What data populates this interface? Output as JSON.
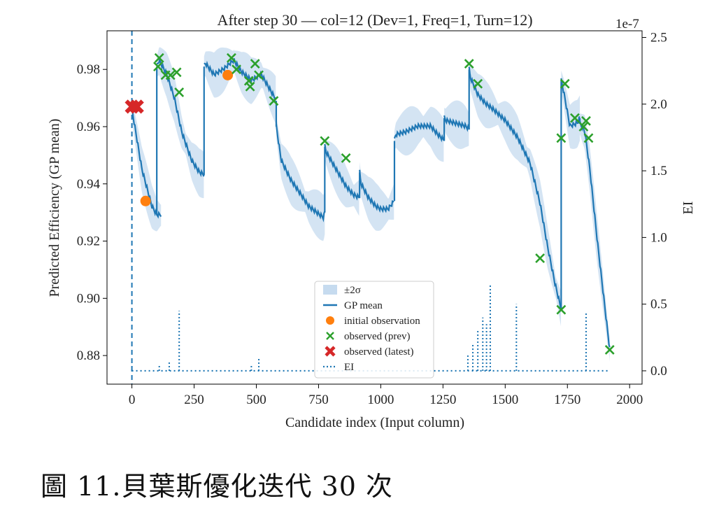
{
  "caption": "圖 11.貝葉斯優化迭代 30 次",
  "chart_data": {
    "type": "line",
    "title": "After step 30 — col=12 (Dev=1, Freq=1, Turn=12)",
    "xlabel": "Candidate index (Input column)",
    "ylabel": "Predicted Efficiency (GP mean)",
    "y2label": "EI",
    "y2_offset_label": "1e-7",
    "xlim": [
      -100,
      2050
    ],
    "ylim": [
      0.87,
      0.9935
    ],
    "y2lim": [
      -0.1,
      2.55
    ],
    "xticks": [
      0,
      250,
      500,
      750,
      1000,
      1250,
      1500,
      1750,
      2000
    ],
    "yticks": [
      "0.88",
      "0.90",
      "0.92",
      "0.94",
      "0.96",
      "0.98"
    ],
    "y2ticks": [
      "0.0",
      "0.5",
      "1.0",
      "1.5",
      "2.0",
      "2.5"
    ],
    "current_column_marker_x": 0,
    "colors": {
      "gp_mean": "#1f77b4",
      "band": "#c6dbef",
      "initial": "#ff7f0e",
      "prev": "#2ca02c",
      "latest": "#d62728",
      "ei": "#1f77b4"
    },
    "legend": {
      "position": "lower-center",
      "entries": [
        {
          "label": "±2σ",
          "kind": "band"
        },
        {
          "label": "GP mean",
          "kind": "line"
        },
        {
          "label": "initial observation",
          "kind": "orange-dot"
        },
        {
          "label": "observed (prev)",
          "kind": "green-x"
        },
        {
          "label": "observed (latest)",
          "kind": "red-x"
        },
        {
          "label": "EI",
          "kind": "dotted"
        }
      ]
    },
    "gp_mean_segments": [
      {
        "x": [
          0,
          40,
          80,
          100,
          118
        ],
        "y": [
          0.966,
          0.945,
          0.932,
          0.929,
          0.929
        ]
      },
      {
        "x": [
          100,
          110,
          140,
          170,
          200,
          240,
          270,
          290
        ],
        "y": [
          0.981,
          0.983,
          0.978,
          0.97,
          0.958,
          0.948,
          0.944,
          0.943
        ]
      },
      {
        "x": [
          290,
          295,
          330,
          370,
          395,
          410
        ],
        "y": [
          0.981,
          0.982,
          0.978,
          0.98,
          0.982,
          0.983
        ]
      },
      {
        "x": [
          410,
          440,
          480,
          520,
          560,
          580
        ],
        "y": [
          0.983,
          0.979,
          0.976,
          0.978,
          0.972,
          0.969
        ]
      },
      {
        "x": [
          580,
          600,
          640,
          680,
          710,
          740,
          770,
          775
        ],
        "y": [
          0.96,
          0.948,
          0.941,
          0.936,
          0.932,
          0.93,
          0.928,
          0.93
        ]
      },
      {
        "x": [
          775,
          780,
          820,
          860,
          890,
          915
        ],
        "y": [
          0.953,
          0.951,
          0.945,
          0.939,
          0.936,
          0.935
        ]
      },
      {
        "x": [
          915,
          920,
          950,
          980,
          1000,
          1030,
          1055
        ],
        "y": [
          0.944,
          0.94,
          0.935,
          0.932,
          0.931,
          0.931,
          0.934
        ]
      },
      {
        "x": [
          1055,
          1060,
          1100,
          1150,
          1200,
          1230,
          1255
        ],
        "y": [
          0.955,
          0.957,
          0.958,
          0.96,
          0.96,
          0.957,
          0.955
        ]
      },
      {
        "x": [
          1255,
          1260,
          1300,
          1340,
          1355
        ],
        "y": [
          0.963,
          0.962,
          0.961,
          0.96,
          0.959
        ]
      },
      {
        "x": [
          1355,
          1360,
          1390,
          1420,
          1450,
          1500,
          1550,
          1600,
          1640,
          1670,
          1700,
          1725
        ],
        "y": [
          0.98,
          0.977,
          0.971,
          0.968,
          0.966,
          0.962,
          0.956,
          0.947,
          0.933,
          0.918,
          0.905,
          0.896
        ]
      },
      {
        "x": [
          1725,
          1735,
          1760,
          1790,
          1800
        ],
        "y": [
          0.976,
          0.972,
          0.96,
          0.961,
          0.963
        ]
      },
      {
        "x": [
          1800,
          1820,
          1840,
          1870,
          1900,
          1920
        ],
        "y": [
          0.961,
          0.958,
          0.945,
          0.92,
          0.897,
          0.882
        ]
      }
    ],
    "band_halfwidth": 0.006,
    "ei_baseline": 0.0,
    "ei_spikes": [
      {
        "x": 0,
        "y": 0.05
      },
      {
        "x": 110,
        "y": 0.05
      },
      {
        "x": 150,
        "y": 0.07
      },
      {
        "x": 190,
        "y": 0.45
      },
      {
        "x": 480,
        "y": 0.05
      },
      {
        "x": 510,
        "y": 0.1
      },
      {
        "x": 1350,
        "y": 0.12
      },
      {
        "x": 1370,
        "y": 0.2
      },
      {
        "x": 1390,
        "y": 0.3
      },
      {
        "x": 1410,
        "y": 0.4
      },
      {
        "x": 1425,
        "y": 0.35
      },
      {
        "x": 1440,
        "y": 0.65
      },
      {
        "x": 1545,
        "y": 0.5
      },
      {
        "x": 1825,
        "y": 0.43
      }
    ],
    "initial_observations": [
      {
        "x": 55,
        "y": 0.934
      },
      {
        "x": 385,
        "y": 0.978
      }
    ],
    "observed_prev": [
      {
        "x": 105,
        "y": 0.981
      },
      {
        "x": 110,
        "y": 0.984
      },
      {
        "x": 135,
        "y": 0.978
      },
      {
        "x": 155,
        "y": 0.978
      },
      {
        "x": 180,
        "y": 0.979
      },
      {
        "x": 190,
        "y": 0.972
      },
      {
        "x": 400,
        "y": 0.984
      },
      {
        "x": 420,
        "y": 0.98
      },
      {
        "x": 470,
        "y": 0.976
      },
      {
        "x": 475,
        "y": 0.974
      },
      {
        "x": 495,
        "y": 0.982
      },
      {
        "x": 510,
        "y": 0.978
      },
      {
        "x": 570,
        "y": 0.969
      },
      {
        "x": 775,
        "y": 0.955
      },
      {
        "x": 860,
        "y": 0.949
      },
      {
        "x": 1355,
        "y": 0.982
      },
      {
        "x": 1390,
        "y": 0.975
      },
      {
        "x": 1640,
        "y": 0.914
      },
      {
        "x": 1725,
        "y": 0.896
      },
      {
        "x": 1725,
        "y": 0.956
      },
      {
        "x": 1740,
        "y": 0.975
      },
      {
        "x": 1780,
        "y": 0.963
      },
      {
        "x": 1815,
        "y": 0.96
      },
      {
        "x": 1825,
        "y": 0.962
      },
      {
        "x": 1835,
        "y": 0.956
      },
      {
        "x": 1920,
        "y": 0.882
      }
    ],
    "observed_latest": [
      {
        "x": 0,
        "y": 0.967
      },
      {
        "x": 20,
        "y": 0.967
      }
    ]
  }
}
